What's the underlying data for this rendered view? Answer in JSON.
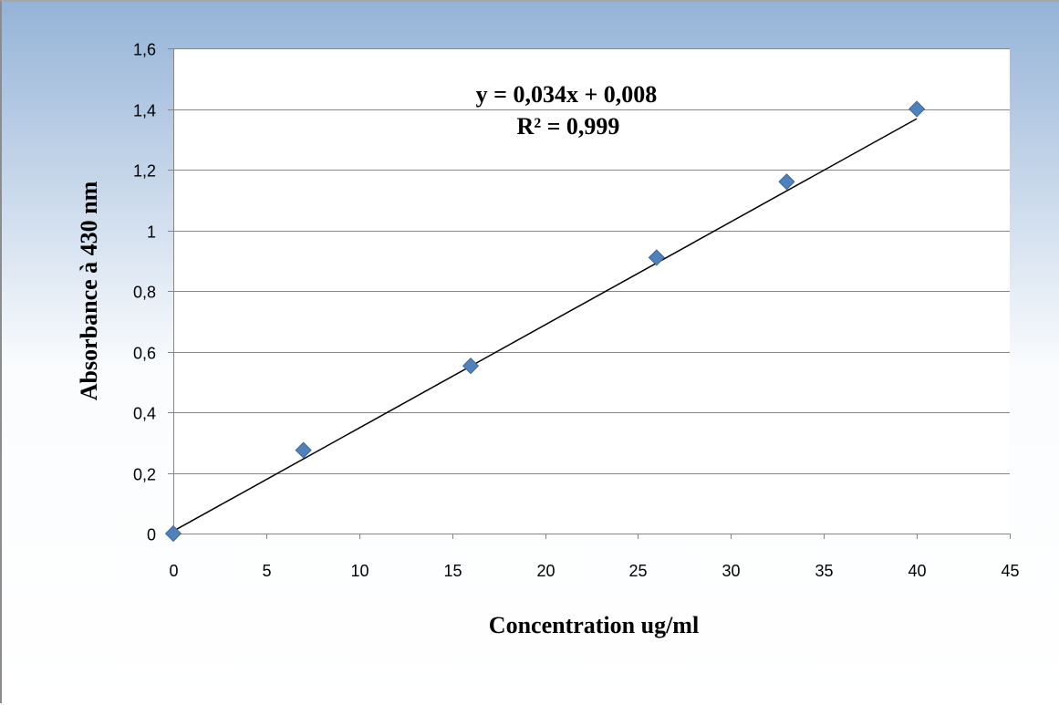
{
  "chart_data": {
    "type": "scatter",
    "xlabel": "Concentration ug/ml",
    "ylabel": "Absorbance à 430 nm",
    "xlim": [
      0,
      45
    ],
    "ylim": [
      0,
      1.6
    ],
    "x_ticks": [
      0,
      5,
      10,
      15,
      20,
      25,
      30,
      35,
      40,
      45
    ],
    "y_ticks": [
      0,
      0.2,
      0.4,
      0.6,
      0.8,
      1,
      1.2,
      1.4,
      1.6
    ],
    "x_tick_labels": [
      "0",
      "5",
      "10",
      "15",
      "20",
      "25",
      "30",
      "35",
      "40",
      "45"
    ],
    "y_tick_labels": [
      "0",
      "0,2",
      "0,4",
      "0,6",
      "0,8",
      "1",
      "1,2",
      "1,4",
      "1,6"
    ],
    "grid": "horizontal",
    "series": [
      {
        "x": [
          0,
          7,
          16,
          26,
          33,
          40
        ],
        "y": [
          0,
          0.275,
          0.553,
          0.91,
          1.16,
          1.4
        ],
        "marker": "diamond",
        "color": "#4f81bd"
      }
    ],
    "trendline": {
      "type": "linear",
      "slope": 0.034,
      "intercept": 0.008,
      "x_range": [
        0,
        40
      ],
      "color": "#000000",
      "equation_label": "y = 0,034x + 0,008",
      "r2_label": "R² = 0,999"
    }
  },
  "colors": {
    "header_gradient": "#95b3d7",
    "frame": "#8c8c8c",
    "grid": "#868686",
    "marker": "#4f81bd",
    "marker_stroke": "#385d8a"
  }
}
